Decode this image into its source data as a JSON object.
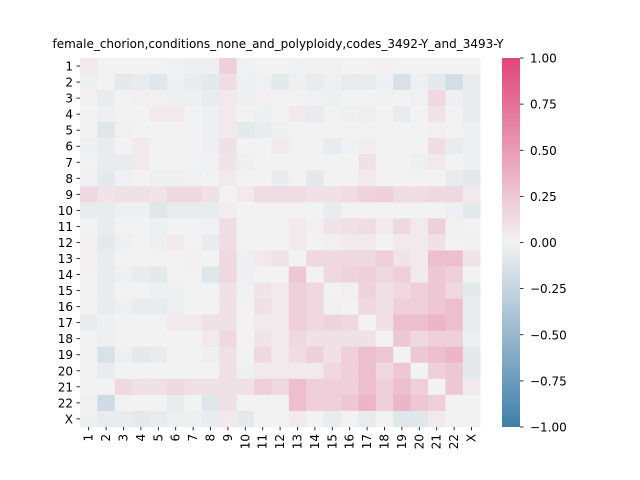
{
  "chart_data": {
    "type": "heatmap",
    "title": "female_chorion,conditions_none_and_polyploidy,codes_3492-Y_and_3493-Y",
    "xlabel": "",
    "ylabel": "",
    "labels": [
      "1",
      "2",
      "3",
      "4",
      "5",
      "6",
      "7",
      "8",
      "9",
      "10",
      "11",
      "12",
      "13",
      "14",
      "15",
      "16",
      "17",
      "18",
      "19",
      "20",
      "21",
      "22",
      "X"
    ],
    "colorbar": {
      "min": -1.0,
      "max": 1.0,
      "ticks": [
        "1.00",
        "0.75",
        "0.50",
        "0.25",
        "0.00",
        "−0.25",
        "−0.50",
        "−0.75",
        "−1.00"
      ],
      "tick_values": [
        1.0,
        0.75,
        0.5,
        0.25,
        0.0,
        -0.25,
        -0.5,
        -0.75,
        -1.0
      ],
      "low_color": "#3f7fab",
      "mid_color": "#f2f2f2",
      "high_color": "#e0457a"
    },
    "matrix": [
      [
        0.05,
        0.0,
        0.0,
        0.0,
        0.0,
        -0.02,
        -0.03,
        -0.03,
        0.2,
        -0.02,
        0.0,
        0.0,
        -0.02,
        0.02,
        0.02,
        0.0,
        0.0,
        0.02,
        0.0,
        0.0,
        0.0,
        0.0,
        0.0
      ],
      [
        -0.03,
        0.0,
        -0.08,
        -0.05,
        -0.1,
        -0.03,
        -0.05,
        -0.08,
        0.12,
        -0.03,
        -0.02,
        -0.08,
        -0.03,
        -0.05,
        -0.03,
        -0.05,
        -0.05,
        -0.03,
        -0.15,
        -0.03,
        -0.08,
        -0.18,
        -0.05
      ],
      [
        0.02,
        -0.05,
        0.0,
        0.02,
        0.02,
        -0.03,
        -0.03,
        -0.05,
        0.05,
        -0.03,
        0.02,
        0.0,
        0.0,
        -0.02,
        -0.03,
        0.0,
        0.0,
        -0.02,
        0.0,
        -0.02,
        0.15,
        -0.03,
        -0.05
      ],
      [
        0.0,
        -0.03,
        0.0,
        0.0,
        0.05,
        0.05,
        0.0,
        -0.03,
        0.05,
        0.0,
        -0.03,
        0.0,
        0.05,
        -0.05,
        0.0,
        -0.03,
        0.03,
        0.0,
        -0.05,
        0.0,
        0.08,
        0.0,
        -0.05
      ],
      [
        0.0,
        -0.1,
        0.02,
        0.0,
        0.0,
        0.0,
        0.0,
        -0.03,
        0.05,
        -0.08,
        -0.05,
        -0.03,
        0.0,
        0.0,
        0.0,
        0.0,
        0.0,
        0.0,
        0.0,
        0.0,
        0.02,
        0.0,
        -0.03
      ],
      [
        -0.03,
        -0.05,
        0.0,
        0.05,
        0.0,
        0.0,
        0.0,
        -0.03,
        0.1,
        0.0,
        0.0,
        0.05,
        0.0,
        0.0,
        -0.05,
        -0.02,
        0.03,
        0.0,
        0.0,
        0.0,
        0.12,
        -0.05,
        -0.03
      ],
      [
        0.0,
        -0.05,
        -0.05,
        0.05,
        0.0,
        0.0,
        0.0,
        -0.02,
        0.08,
        -0.03,
        0.0,
        0.0,
        0.0,
        0.0,
        0.0,
        0.0,
        0.1,
        0.0,
        0.0,
        -0.03,
        0.05,
        0.0,
        -0.03
      ],
      [
        -0.02,
        -0.08,
        -0.02,
        0.0,
        -0.03,
        -0.03,
        -0.02,
        0.0,
        0.05,
        0.0,
        0.0,
        -0.05,
        0.0,
        -0.08,
        0.0,
        0.0,
        0.05,
        0.0,
        0.0,
        0.0,
        0.0,
        -0.05,
        -0.08
      ],
      [
        0.15,
        0.08,
        0.1,
        0.1,
        0.08,
        0.15,
        0.15,
        0.1,
        0.0,
        0.05,
        0.12,
        0.12,
        0.12,
        0.1,
        0.1,
        0.12,
        0.18,
        0.2,
        0.12,
        0.12,
        0.15,
        0.15,
        0.05
      ],
      [
        -0.05,
        -0.05,
        -0.03,
        -0.03,
        -0.1,
        -0.05,
        -0.05,
        -0.05,
        0.03,
        0.0,
        0.0,
        0.0,
        0.0,
        0.0,
        -0.05,
        0.0,
        0.0,
        0.0,
        0.0,
        0.0,
        0.0,
        -0.03,
        -0.08
      ],
      [
        0.0,
        -0.05,
        0.0,
        0.0,
        -0.03,
        0.0,
        0.0,
        -0.02,
        0.12,
        0.0,
        0.0,
        0.0,
        0.05,
        0.02,
        0.08,
        0.1,
        0.12,
        0.05,
        0.15,
        0.05,
        0.2,
        0.02,
        0.0
      ],
      [
        0.02,
        -0.08,
        -0.03,
        0.0,
        -0.03,
        0.05,
        0.0,
        -0.05,
        0.12,
        0.0,
        0.0,
        0.0,
        0.05,
        0.0,
        0.02,
        0.05,
        0.05,
        0.0,
        0.05,
        0.05,
        0.1,
        0.0,
        -0.02
      ],
      [
        0.02,
        -0.05,
        0.0,
        0.0,
        0.0,
        0.0,
        0.02,
        0.0,
        0.15,
        -0.03,
        0.05,
        0.08,
        0.0,
        0.15,
        0.15,
        0.15,
        0.15,
        0.2,
        0.08,
        0.05,
        0.3,
        0.3,
        0.08
      ],
      [
        0.0,
        -0.05,
        -0.03,
        -0.05,
        -0.08,
        0.0,
        0.0,
        -0.1,
        0.15,
        -0.03,
        0.0,
        0.0,
        0.25,
        0.0,
        0.15,
        0.18,
        0.2,
        0.15,
        0.2,
        0.05,
        0.25,
        0.2,
        0.0
      ],
      [
        0.0,
        -0.05,
        0.0,
        0.0,
        -0.03,
        -0.03,
        0.0,
        0.0,
        0.1,
        -0.02,
        0.08,
        0.05,
        0.2,
        0.15,
        0.0,
        0.02,
        0.18,
        0.1,
        0.15,
        0.2,
        0.25,
        0.15,
        -0.08
      ],
      [
        0.0,
        -0.05,
        -0.03,
        -0.05,
        -0.05,
        -0.03,
        0.0,
        0.0,
        0.1,
        0.0,
        0.1,
        0.05,
        0.2,
        0.15,
        0.02,
        0.0,
        0.15,
        0.1,
        0.2,
        0.2,
        0.25,
        0.3,
        -0.05
      ],
      [
        -0.05,
        -0.03,
        0.0,
        0.0,
        0.0,
        0.05,
        0.05,
        0.1,
        0.1,
        0.0,
        0.05,
        0.05,
        0.2,
        0.15,
        0.18,
        0.15,
        0.0,
        0.1,
        0.3,
        0.3,
        0.35,
        0.3,
        -0.05
      ],
      [
        0.0,
        -0.03,
        0.0,
        0.0,
        0.0,
        0.0,
        0.0,
        0.05,
        0.15,
        0.0,
        0.08,
        0.05,
        0.15,
        0.1,
        0.1,
        0.1,
        0.1,
        0.0,
        0.25,
        0.15,
        0.2,
        0.2,
        -0.03
      ],
      [
        0.0,
        -0.15,
        -0.03,
        -0.08,
        -0.05,
        0.0,
        0.0,
        -0.03,
        0.1,
        0.0,
        0.15,
        0.05,
        0.12,
        0.2,
        0.1,
        0.2,
        0.3,
        0.25,
        0.0,
        0.25,
        0.3,
        0.35,
        -0.08
      ],
      [
        0.0,
        -0.05,
        0.0,
        0.0,
        0.0,
        0.0,
        0.0,
        0.0,
        0.1,
        -0.03,
        0.05,
        0.05,
        0.05,
        0.05,
        0.15,
        0.2,
        0.3,
        0.15,
        0.25,
        0.0,
        0.2,
        0.25,
        -0.08
      ],
      [
        0.0,
        0.0,
        0.15,
        0.1,
        0.1,
        0.15,
        0.1,
        0.1,
        0.1,
        0.1,
        0.2,
        0.15,
        0.3,
        0.2,
        0.2,
        0.2,
        0.3,
        0.2,
        0.3,
        0.2,
        0.0,
        0.25,
        0.05
      ],
      [
        0.02,
        -0.2,
        0.0,
        0.0,
        0.0,
        -0.05,
        0.0,
        -0.1,
        0.1,
        0.0,
        0.0,
        0.0,
        0.3,
        0.2,
        0.2,
        0.25,
        0.35,
        0.2,
        0.35,
        0.25,
        0.2,
        0.0,
        0.0
      ],
      [
        -0.03,
        -0.05,
        -0.05,
        -0.08,
        -0.05,
        -0.03,
        -0.03,
        -0.05,
        0.05,
        -0.08,
        0.0,
        0.0,
        0.05,
        0.0,
        -0.05,
        0.0,
        -0.05,
        0.0,
        -0.1,
        -0.1,
        0.05,
        0.0,
        0.0
      ]
    ]
  }
}
